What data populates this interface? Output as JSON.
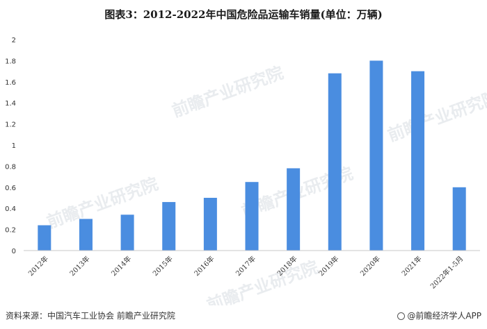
{
  "chart_data": {
    "type": "bar",
    "title": "图表3：2012-2022年中国危险品运输车销量(单位：万辆)",
    "categories": [
      "2012年",
      "2013年",
      "2014年",
      "2015年",
      "2016年",
      "2017年",
      "2018年",
      "2019年",
      "2020年",
      "2021年",
      "2022年1-5月"
    ],
    "values": [
      0.24,
      0.3,
      0.34,
      0.46,
      0.5,
      0.65,
      0.78,
      1.68,
      1.8,
      1.7,
      0.6
    ],
    "ylim": [
      0,
      2
    ],
    "yticks": [
      "0",
      "0.2",
      "0.4",
      "0.6",
      "0.8",
      "1",
      "1.2",
      "1.4",
      "1.6",
      "1.8",
      "2"
    ],
    "bar_color": "#4a8de0",
    "grid": false,
    "watermark": "前瞻产业研究院"
  },
  "footer": {
    "source": "资料来源：中国汽车工业协会 前瞻产业研究院",
    "brand": "@前瞻经济学人APP"
  }
}
